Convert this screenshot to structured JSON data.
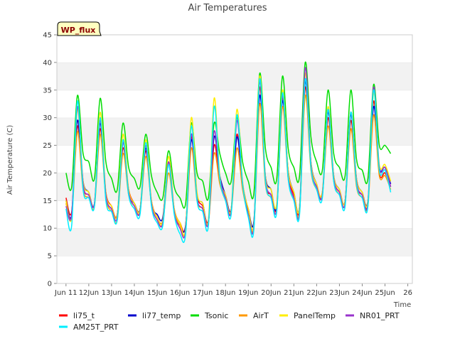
{
  "chart_data": {
    "type": "line",
    "title": "Air Temperatures",
    "xlabel": "Time",
    "ylabel": "Air Temperature (C)",
    "site_label": "WP_flux",
    "xlim": [
      "Jun 11",
      "Jun 26"
    ],
    "ylim": [
      0,
      45
    ],
    "x_ticks": [
      "Jun 11",
      "12Jun",
      "13Jun",
      "14Jun",
      "15Jun",
      "16Jun",
      "17Jun",
      "18Jun",
      "19Jun",
      "20Jun",
      "21Jun",
      "22Jun",
      "23Jun",
      "24Jun",
      "25Jun",
      "26"
    ],
    "y_ticks": [
      0,
      5,
      10,
      15,
      20,
      25,
      30,
      35,
      40,
      45
    ],
    "grid": "horizontal bands",
    "legend_position": "bottom",
    "x": [
      "Jun 11 00:00",
      "Jun 11 06:00",
      "Jun 11 12:00",
      "Jun 11 18:00",
      "Jun 12 00:00",
      "Jun 12 06:00",
      "Jun 12 12:00",
      "Jun 12 18:00",
      "Jun 13 00:00",
      "Jun 13 06:00",
      "Jun 13 12:00",
      "Jun 13 18:00",
      "Jun 14 00:00",
      "Jun 14 06:00",
      "Jun 14 12:00",
      "Jun 14 18:00",
      "Jun 15 00:00",
      "Jun 15 06:00",
      "Jun 15 12:00",
      "Jun 15 18:00",
      "Jun 16 00:00",
      "Jun 16 06:00",
      "Jun 16 12:00",
      "Jun 16 18:00",
      "Jun 17 00:00",
      "Jun 17 06:00",
      "Jun 17 12:00",
      "Jun 17 18:00",
      "Jun 18 00:00",
      "Jun 18 06:00",
      "Jun 18 12:00",
      "Jun 18 18:00",
      "Jun 19 00:00",
      "Jun 19 06:00",
      "Jun 19 12:00",
      "Jun 19 18:00",
      "Jun 20 00:00",
      "Jun 20 06:00",
      "Jun 20 12:00",
      "Jun 20 18:00",
      "Jun 21 00:00",
      "Jun 21 06:00",
      "Jun 21 12:00",
      "Jun 21 18:00",
      "Jun 22 00:00",
      "Jun 22 06:00",
      "Jun 22 12:00",
      "Jun 22 18:00",
      "Jun 23 00:00",
      "Jun 23 06:00",
      "Jun 23 12:00",
      "Jun 23 18:00",
      "Jun 24 00:00",
      "Jun 24 06:00",
      "Jun 24 12:00",
      "Jun 24 18:00",
      "Jun 25 00:00",
      "Jun 25 06:00"
    ],
    "series": [
      {
        "name": "li75_t",
        "color": "#ff0000",
        "values": [
          15.5,
          13.0,
          28.5,
          17.5,
          16.0,
          14.5,
          28.0,
          16.5,
          14.0,
          12.5,
          24.5,
          17.0,
          14.5,
          13.5,
          24.0,
          15.0,
          12.0,
          11.5,
          21.5,
          13.5,
          11.0,
          10.5,
          26.5,
          16.0,
          14.0,
          11.5,
          25.0,
          18.5,
          15.5,
          13.5,
          27.0,
          17.5,
          13.0,
          11.0,
          35.5,
          18.5,
          16.0,
          14.0,
          33.5,
          20.0,
          16.0,
          13.5,
          35.5,
          21.0,
          17.5,
          16.5,
          30.0,
          19.0,
          16.5,
          15.0,
          29.5,
          18.0,
          16.0,
          14.5,
          33.0,
          20.0,
          20.0,
          17.5
        ]
      },
      {
        "name": "li77_temp",
        "color": "#0000cc",
        "values": [
          15.0,
          12.5,
          29.5,
          18.5,
          16.5,
          14.5,
          29.0,
          16.0,
          13.5,
          12.5,
          25.5,
          16.5,
          14.5,
          13.5,
          24.5,
          14.5,
          12.5,
          12.0,
          22.0,
          13.0,
          10.5,
          10.5,
          26.0,
          16.0,
          14.5,
          11.0,
          26.5,
          19.5,
          16.0,
          13.5,
          26.5,
          18.0,
          13.5,
          11.5,
          34.0,
          19.5,
          17.0,
          14.0,
          33.0,
          20.5,
          16.5,
          14.0,
          36.5,
          22.0,
          18.0,
          16.0,
          31.0,
          19.5,
          17.0,
          15.0,
          30.5,
          19.0,
          16.5,
          15.0,
          32.0,
          21.0,
          21.0,
          18.0
        ]
      },
      {
        "name": "Tsonic",
        "color": "#00dd00",
        "values": [
          20.0,
          17.5,
          34.0,
          23.5,
          22.0,
          19.0,
          33.5,
          22.0,
          19.0,
          17.0,
          29.0,
          21.0,
          19.0,
          17.5,
          27.0,
          19.5,
          16.5,
          15.5,
          24.0,
          17.5,
          15.5,
          14.5,
          29.0,
          20.0,
          18.5,
          15.5,
          29.0,
          23.5,
          20.0,
          18.5,
          30.0,
          22.0,
          18.5,
          16.5,
          38.0,
          24.5,
          21.0,
          19.0,
          37.5,
          24.5,
          21.0,
          19.5,
          40.0,
          26.5,
          22.0,
          20.5,
          35.0,
          23.5,
          21.0,
          19.5,
          35.0,
          22.5,
          20.5,
          19.0,
          36.0,
          25.0,
          25.0,
          23.5
        ]
      },
      {
        "name": "AirT",
        "color": "#ff9900",
        "values": [
          14.5,
          12.0,
          27.5,
          17.0,
          15.5,
          14.0,
          27.0,
          15.5,
          13.0,
          11.5,
          23.5,
          16.0,
          14.0,
          13.0,
          23.0,
          14.5,
          11.5,
          11.0,
          20.0,
          13.0,
          10.5,
          9.5,
          24.5,
          15.0,
          13.5,
          11.0,
          23.5,
          18.0,
          15.0,
          13.0,
          24.5,
          17.0,
          12.5,
          10.5,
          32.5,
          18.0,
          15.5,
          13.5,
          32.0,
          19.0,
          15.5,
          13.0,
          34.0,
          20.5,
          17.0,
          16.0,
          28.5,
          18.5,
          16.0,
          14.5,
          28.0,
          17.5,
          15.5,
          14.0,
          30.5,
          19.5,
          19.5,
          17.0
        ]
      },
      {
        "name": "PanelTemp",
        "color": "#ffee00",
        "values": [
          15.0,
          12.0,
          31.5,
          18.5,
          16.5,
          14.5,
          31.0,
          16.5,
          14.0,
          12.5,
          27.0,
          17.0,
          14.5,
          13.5,
          26.0,
          15.0,
          12.0,
          11.5,
          23.0,
          13.5,
          11.0,
          10.0,
          30.0,
          16.5,
          14.5,
          11.5,
          33.5,
          19.5,
          16.0,
          13.5,
          31.5,
          18.5,
          13.5,
          11.0,
          37.5,
          19.5,
          17.0,
          14.5,
          35.0,
          20.5,
          16.5,
          14.0,
          38.0,
          22.0,
          18.0,
          16.5,
          32.0,
          19.5,
          17.0,
          15.0,
          31.0,
          19.0,
          16.5,
          15.0,
          34.5,
          21.5,
          21.5,
          18.5
        ]
      },
      {
        "name": "NR01_PRT",
        "color": "#9933cc",
        "values": [
          14.0,
          12.5,
          32.0,
          18.0,
          16.0,
          14.5,
          29.5,
          16.0,
          13.5,
          12.0,
          25.5,
          16.5,
          14.0,
          13.0,
          25.0,
          14.5,
          11.5,
          11.0,
          22.0,
          13.0,
          10.0,
          9.5,
          27.0,
          15.5,
          13.5,
          11.0,
          27.5,
          19.0,
          15.5,
          13.0,
          29.5,
          18.0,
          12.5,
          10.5,
          36.5,
          19.0,
          16.0,
          13.5,
          34.0,
          19.5,
          15.5,
          13.0,
          39.0,
          21.5,
          17.5,
          16.0,
          31.5,
          19.0,
          16.5,
          14.5,
          31.0,
          18.5,
          16.0,
          14.5,
          35.5,
          21.0,
          21.0,
          17.5
        ]
      },
      {
        "name": "AM25T_PRT",
        "color": "#00eeff",
        "values": [
          13.5,
          10.5,
          33.0,
          17.0,
          15.5,
          14.0,
          30.0,
          15.0,
          13.0,
          11.5,
          26.0,
          16.0,
          13.5,
          12.5,
          25.5,
          14.0,
          11.0,
          10.5,
          21.5,
          12.5,
          9.0,
          9.0,
          28.5,
          15.0,
          13.0,
          10.5,
          32.0,
          19.0,
          15.0,
          12.5,
          30.5,
          18.0,
          12.0,
          10.0,
          37.0,
          18.5,
          15.5,
          13.0,
          34.5,
          19.0,
          15.0,
          12.5,
          37.0,
          21.0,
          17.0,
          15.5,
          31.5,
          18.5,
          16.0,
          14.0,
          31.0,
          18.0,
          15.5,
          14.0,
          35.0,
          20.5,
          20.5,
          16.5
        ]
      }
    ]
  }
}
